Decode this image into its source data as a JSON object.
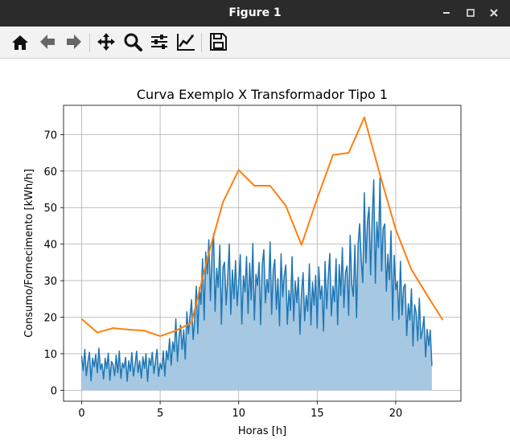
{
  "window": {
    "title": "Figure 1",
    "minimize_icon": "minimize-icon",
    "maximize_icon": "maximize-icon",
    "close_icon": "close-icon"
  },
  "toolbar": {
    "items": [
      {
        "name": "home",
        "icon": "home-icon"
      },
      {
        "name": "back",
        "icon": "arrow-left-icon"
      },
      {
        "name": "forward",
        "icon": "arrow-right-icon"
      },
      {
        "name": "pan",
        "icon": "move-icon"
      },
      {
        "name": "zoom",
        "icon": "zoom-icon"
      },
      {
        "name": "subplots",
        "icon": "sliders-icon"
      },
      {
        "name": "customize",
        "icon": "chart-line-icon"
      },
      {
        "name": "save",
        "icon": "save-icon"
      }
    ]
  },
  "chart_data": {
    "type": "line",
    "title": "Curva Exemplo X  Transformador Tipo 1",
    "xlabel": "Horas [h]",
    "ylabel": "Consumo/Fornecimento [kWh/h]",
    "xlim": [
      -1.15,
      24.15
    ],
    "ylim": [
      -3,
      78
    ],
    "xticks": [
      0,
      5,
      10,
      15,
      20
    ],
    "yticks": [
      0,
      10,
      20,
      30,
      40,
      50,
      60,
      70
    ],
    "grid": true,
    "colors": {
      "consumption": "#1f77b4",
      "fill": "#a6c8e2",
      "supply": "#ff7f0e",
      "grid": "#b0b0b0"
    },
    "series": [
      {
        "role": "supply",
        "color": "#ff7f0e",
        "x": [
          0,
          1,
          2,
          3,
          4,
          5,
          6,
          7,
          8,
          9,
          10,
          11,
          12,
          13,
          14,
          15,
          16,
          17,
          18,
          19,
          20,
          21,
          22,
          23
        ],
        "y": [
          19.5,
          15.8,
          17,
          16.6,
          16.3,
          14.8,
          16.3,
          18.5,
          36,
          51.5,
          60.3,
          56,
          56,
          50.5,
          39.8,
          52.5,
          64.4,
          65,
          74.7,
          59,
          44,
          33,
          26,
          19.2
        ]
      },
      {
        "role": "consumption",
        "color": "#1f77b4",
        "fill": "#a6c8e2",
        "x_start": 0,
        "x_step": 0.1,
        "anchors_x": [
          0,
          1,
          2,
          3,
          4,
          5,
          5.5,
          6,
          6.5,
          7,
          7.3,
          7.6,
          8,
          9,
          10,
          11,
          12,
          13,
          14,
          15,
          16,
          17,
          17.5,
          18,
          18.5,
          19,
          19.5,
          20,
          21,
          22,
          23
        ],
        "anchors_y": [
          7,
          7,
          6.5,
          6.5,
          7,
          7,
          9,
          13,
          15,
          18,
          20,
          28,
          33,
          30,
          28,
          29,
          30,
          27,
          24,
          26,
          28,
          30,
          33,
          40,
          45,
          42,
          36,
          28,
          21,
          14,
          8
        ],
        "noise": [
          1.2,
          -0.8,
          2.1,
          -1.5,
          0.4,
          1.7,
          -2.2,
          0.9,
          -0.3,
          1.4,
          -1.1,
          2.3,
          -0.6,
          0.2,
          -1.9,
          1.0,
          -0.4,
          1.8,
          -2.0,
          0.7,
          0.3,
          -1.3,
          1.6,
          -0.9,
          2.2,
          -1.7,
          0.5,
          -0.2,
          1.3,
          -2.1,
          0.8,
          -0.7,
          1.9,
          -1.4,
          0.1,
          2.0,
          -1.0,
          0.6,
          -1.8,
          1.1,
          -0.5,
          1.5,
          -2.3,
          0.9,
          -0.1,
          1.7,
          -1.2,
          0.4,
          2.1,
          -1.6,
          0.2,
          -0.8,
          1.4,
          -2.0,
          1.0,
          -0.3,
          1.8,
          -1.5,
          0.7,
          -0.6,
          2.3,
          -1.9,
          0.3,
          1.2,
          -1.1,
          0.5,
          -2.2,
          1.6,
          -0.4,
          0.8,
          1.9,
          -1.3,
          0.0,
          2.2,
          -1.7,
          0.6,
          -0.9,
          1.3,
          -2.1,
          1.1,
          -0.2,
          1.5,
          -1.4,
          0.9,
          2.0,
          -1.8,
          0.4,
          -0.5,
          1.7,
          -2.3,
          0.7,
          1.0,
          -1.2,
          0.2,
          2.1,
          -1.6,
          0.8,
          -0.7,
          1.4,
          -1.0,
          0.3,
          1.8,
          -2.0,
          0.6,
          -0.3,
          1.6,
          -1.5,
          1.2,
          -0.8,
          2.2,
          -1.9,
          0.5,
          -0.1,
          1.1,
          -2.2,
          0.9,
          1.7,
          -1.1,
          0.1,
          -0.6,
          2.0,
          -1.7,
          0.7,
          1.3,
          -1.3,
          0.4,
          -2.1,
          1.9,
          -0.4,
          0.8,
          1.5,
          -1.8,
          0.2,
          -0.9,
          2.3,
          -1.4,
          1.0,
          -0.2,
          1.4,
          -2.0,
          0.6,
          1.8,
          -1.2,
          0.3,
          -0.7,
          2.1,
          -1.6,
          0.9,
          -0.5,
          1.2,
          -1.9,
          1.6,
          -0.3,
          0.4,
          -2.2,
          1.7,
          -1.0,
          0.7,
          2.0,
          -1.5,
          0.1,
          -0.8,
          1.5,
          -2.1,
          1.1,
          -0.6,
          1.9,
          -1.3,
          0.5,
          0.8,
          -1.8,
          2.2,
          -0.4,
          -1.1,
          1.3,
          -2.3,
          0.9,
          1.6,
          -0.2,
          -1.4,
          2.1,
          -0.9,
          0.6,
          1.0,
          -1.7,
          0.3,
          1.8,
          -2.0,
          0.4,
          -0.5,
          2.3,
          -1.2,
          0.7,
          1.1,
          -1.6,
          0.2,
          -0.7,
          1.9,
          -2.2,
          1.4,
          -0.1,
          0.5,
          -1.5,
          2.0,
          -1.0,
          0.8,
          1.2,
          -1.9,
          0.3,
          -0.6,
          1.7,
          -2.1,
          1.0,
          0.6,
          -1.3,
          2.2,
          -0.8,
          0.1,
          1.5,
          -1.8,
          0.9,
          -0.4,
          1.3,
          -2.0
        ]
      }
    ]
  }
}
